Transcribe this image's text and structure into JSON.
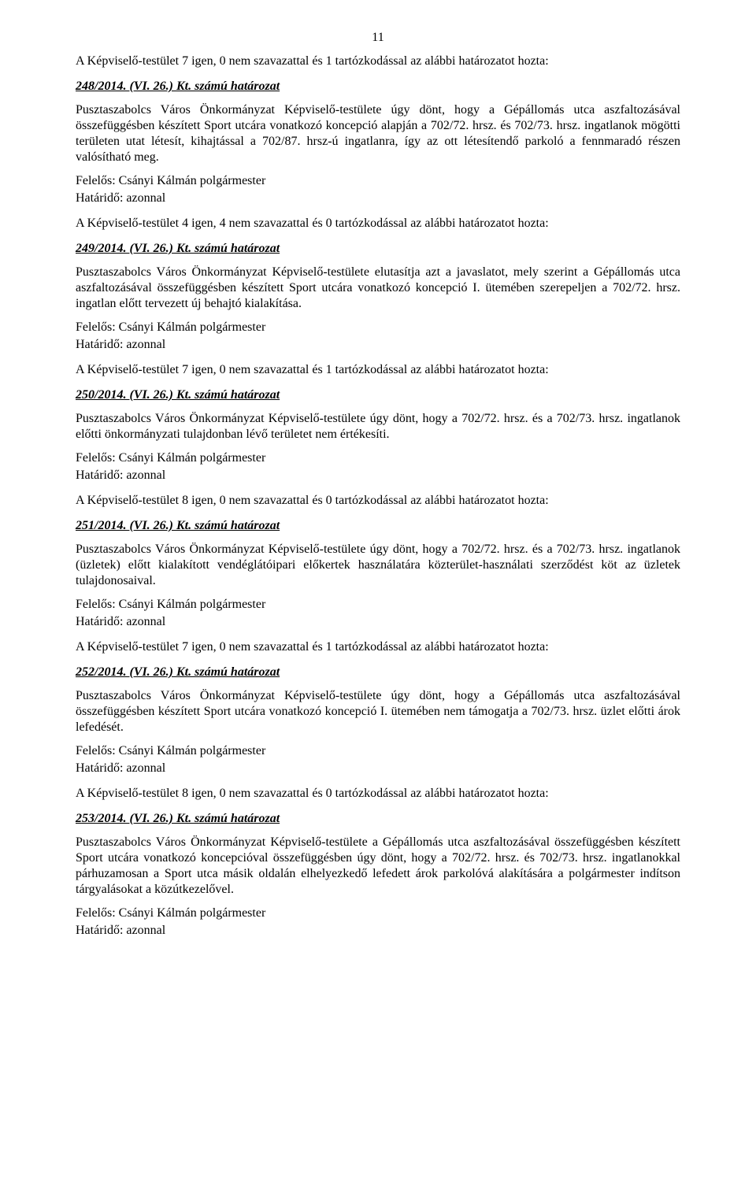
{
  "page_number": "11",
  "resolutions": [
    {
      "vote_line": "A Képviselő-testület 7 igen, 0 nem szavazattal és 1 tartózkodással az alábbi határozatot hozta:",
      "title": "248/2014. (VI. 26.) Kt. számú határozat",
      "body": "Pusztaszabolcs Város Önkormányzat Képviselő-testülete úgy dönt, hogy a Gépállomás utca aszfaltozásával összefüggésben készített Sport utcára vonatkozó koncepció alapján a 702/72. hrsz. és 702/73. hrsz. ingatlanok mögötti területen utat létesít, kihajtással a 702/87. hrsz-ú ingatlanra, így az ott létesítendő parkoló a fennmaradó részen valósítható meg.",
      "closing1": "Felelős: Csányi Kálmán polgármester",
      "closing2": "Határidő: azonnal"
    },
    {
      "vote_line": "A Képviselő-testület 4 igen, 4 nem szavazattal és 0 tartózkodással az alábbi határozatot hozta:",
      "title": "249/2014. (VI. 26.) Kt. számú határozat",
      "body": "Pusztaszabolcs Város Önkormányzat Képviselő-testülete elutasítja azt a javaslatot, mely szerint a Gépállomás utca aszfaltozásával összefüggésben készített Sport utcára vonatkozó koncepció I. ütemében szerepeljen a 702/72. hrsz. ingatlan előtt tervezett új behajtó kialakítása.",
      "closing1": "Felelős: Csányi Kálmán polgármester",
      "closing2": "Határidő: azonnal"
    },
    {
      "vote_line": "A Képviselő-testület 7 igen, 0 nem szavazattal és 1 tartózkodással az alábbi határozatot hozta:",
      "title": "250/2014. (VI. 26.) Kt. számú határozat",
      "body": "Pusztaszabolcs Város Önkormányzat Képviselő-testülete úgy dönt, hogy a 702/72. hrsz. és a 702/73. hrsz. ingatlanok előtti önkormányzati tulajdonban lévő területet nem értékesíti.",
      "closing1": "Felelős: Csányi Kálmán polgármester",
      "closing2": "Határidő: azonnal"
    },
    {
      "vote_line": "A Képviselő-testület 8 igen, 0 nem szavazattal és 0 tartózkodással az alábbi határozatot hozta:",
      "title": "251/2014. (VI. 26.) Kt. számú határozat",
      "body": "Pusztaszabolcs Város Önkormányzat Képviselő-testülete úgy dönt, hogy a 702/72. hrsz. és a 702/73. hrsz. ingatlanok (üzletek) előtt kialakított vendéglátóipari előkertek használatára közterület-használati szerződést köt az üzletek tulajdonosaival.",
      "closing1": "Felelős: Csányi Kálmán polgármester",
      "closing2": "Határidő: azonnal"
    },
    {
      "vote_line": "A Képviselő-testület 7 igen, 0 nem szavazattal és 1 tartózkodással az alábbi határozatot hozta:",
      "title": "252/2014. (VI. 26.) Kt. számú határozat",
      "body": "Pusztaszabolcs Város Önkormányzat Képviselő-testülete úgy dönt, hogy a Gépállomás utca aszfaltozásával összefüggésben készített Sport utcára vonatkozó koncepció I. ütemében nem támogatja a 702/73. hrsz. üzlet előtti árok lefedését.",
      "closing1": "Felelős: Csányi Kálmán polgármester",
      "closing2": "Határidő: azonnal"
    },
    {
      "vote_line": "A Képviselő-testület 8 igen, 0 nem szavazattal és 0 tartózkodással az alábbi határozatot hozta:",
      "title": "253/2014. (VI. 26.) Kt. számú határozat",
      "body": "Pusztaszabolcs Város Önkormányzat Képviselő-testülete a Gépállomás utca aszfaltozásával összefüggésben készített Sport utcára vonatkozó koncepcióval összefüggésben úgy dönt, hogy a 702/72. hrsz. és 702/73. hrsz. ingatlanokkal párhuzamosan a Sport utca másik oldalán elhelyezkedő lefedett árok parkolóvá alakítására a polgármester indítson tárgyalásokat a közútkezelővel.",
      "closing1": "Felelős: Csányi Kálmán polgármester",
      "closing2": "Határidő: azonnal"
    }
  ]
}
